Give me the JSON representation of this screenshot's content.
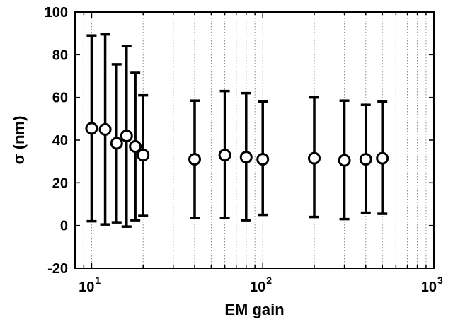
{
  "chart_data": {
    "type": "scatter",
    "xscale": "log",
    "xlim": [
      8,
      1000
    ],
    "ylim": [
      -20,
      100
    ],
    "xlabel": "EM gain",
    "ylabel": "σ (nm)",
    "grid": {
      "x_minor_vertical_dotted": true,
      "y": false
    },
    "x_ticks": [
      {
        "value": 10,
        "base": "10",
        "exp": "1"
      },
      {
        "value": 100,
        "base": "10",
        "exp": "2"
      },
      {
        "value": 1000,
        "base": "10",
        "exp": "3"
      }
    ],
    "y_ticks": [
      {
        "value": -20,
        "label": "-20"
      },
      {
        "value": 0,
        "label": "0"
      },
      {
        "value": 20,
        "label": "20"
      },
      {
        "value": 40,
        "label": "40"
      },
      {
        "value": 60,
        "label": "60"
      },
      {
        "value": 80,
        "label": "80"
      },
      {
        "value": 100,
        "label": "100"
      }
    ],
    "points": [
      {
        "x": 10,
        "y": 45.5,
        "lower": 2,
        "upper": 89
      },
      {
        "x": 12,
        "y": 45,
        "lower": 0.5,
        "upper": 89.5
      },
      {
        "x": 14,
        "y": 38.5,
        "lower": 1.5,
        "upper": 75.5
      },
      {
        "x": 16,
        "y": 42,
        "lower": -0.5,
        "upper": 84
      },
      {
        "x": 18,
        "y": 37,
        "lower": 2.5,
        "upper": 71.5
      },
      {
        "x": 20,
        "y": 33,
        "lower": 4.5,
        "upper": 61
      },
      {
        "x": 40,
        "y": 31,
        "lower": 3.5,
        "upper": 58.5
      },
      {
        "x": 60,
        "y": 33,
        "lower": 3.5,
        "upper": 63
      },
      {
        "x": 80,
        "y": 32,
        "lower": 2.5,
        "upper": 62
      },
      {
        "x": 100,
        "y": 31,
        "lower": 5,
        "upper": 58
      },
      {
        "x": 200,
        "y": 31.5,
        "lower": 4,
        "upper": 60
      },
      {
        "x": 300,
        "y": 30.5,
        "lower": 3,
        "upper": 58.5
      },
      {
        "x": 400,
        "y": 31,
        "lower": 6,
        "upper": 56.5
      },
      {
        "x": 500,
        "y": 31.5,
        "lower": 5.5,
        "upper": 58
      }
    ]
  }
}
